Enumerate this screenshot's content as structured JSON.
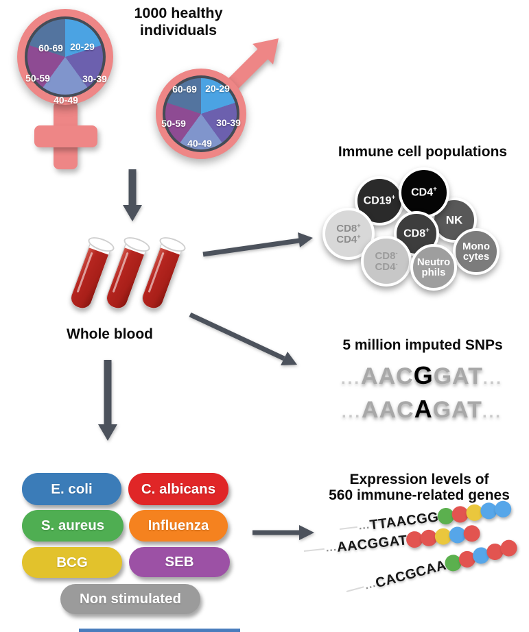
{
  "cohort": {
    "title": "1000 healthy individuals",
    "age_groups": [
      {
        "label": "20-29",
        "color": "#4BA3E3"
      },
      {
        "label": "30-39",
        "color": "#6C60AE"
      },
      {
        "label": "40-49",
        "color": "#8095CC"
      },
      {
        "label": "50-59",
        "color": "#8E4B93"
      },
      {
        "label": "60-69",
        "color": "#53749F"
      }
    ],
    "symbol_color": "#EE8686"
  },
  "whole_blood": {
    "label": "Whole blood"
  },
  "immune_cells": {
    "title": "Immune cell populations",
    "cells": [
      {
        "name": "NK",
        "lines": [
          {
            "base": "NK",
            "sup": ""
          }
        ],
        "bg": "#585858"
      },
      {
        "name": "CD19+",
        "lines": [
          {
            "base": "CD19",
            "sup": "+"
          }
        ],
        "bg": "#2A2A2A"
      },
      {
        "name": "Monocytes",
        "lines": [
          {
            "base": "Mono",
            "sup": ""
          },
          {
            "base": "cytes",
            "sup": ""
          }
        ],
        "bg": "#7C7C7C"
      },
      {
        "name": "CD4+",
        "lines": [
          {
            "base": "CD4",
            "sup": "+"
          }
        ],
        "bg": "#050505"
      },
      {
        "name": "CD8+CD4+",
        "lines": [
          {
            "base": "CD8",
            "sup": "+"
          },
          {
            "base": "CD4",
            "sup": "+"
          }
        ],
        "bg": "#D8D8D8"
      },
      {
        "name": "CD8+",
        "lines": [
          {
            "base": "CD8",
            "sup": "+"
          }
        ],
        "bg": "#3D3D3D"
      },
      {
        "name": "CD8-CD4-",
        "lines": [
          {
            "base": "CD8",
            "sup": "-"
          },
          {
            "base": "CD4",
            "sup": "-"
          }
        ],
        "bg": "#C7C7C7"
      },
      {
        "name": "Neutrophils",
        "lines": [
          {
            "base": "Neutro",
            "sup": ""
          },
          {
            "base": "phils",
            "sup": ""
          }
        ],
        "bg": "#9E9E9E"
      }
    ]
  },
  "snps": {
    "title": "5 million imputed SNPs",
    "sequences": [
      {
        "prefix": "...",
        "before": "AAC",
        "variant": "G",
        "after": "GAT",
        "suffix": "..."
      },
      {
        "prefix": "...",
        "before": "AAC",
        "variant": "A",
        "after": "GAT",
        "suffix": "..."
      }
    ]
  },
  "stimuli": {
    "items": [
      {
        "label": "E. coli",
        "color": "#3B7CB8"
      },
      {
        "label": "C. albicans",
        "color": "#E02627"
      },
      {
        "label": "S. aureus",
        "color": "#4FAE52"
      },
      {
        "label": "Influenza",
        "color": "#F5821F"
      },
      {
        "label": "BCG",
        "color": "#E2C22C"
      },
      {
        "label": "SEB",
        "color": "#9C51A5"
      },
      {
        "label": "Non stimulated",
        "color": "#9B9B9B"
      }
    ]
  },
  "expression": {
    "title_line1": "Expression levels of",
    "title_line2": "560 immune-related genes",
    "dot_colors": {
      "green": "#5BB04E",
      "red": "#E25450",
      "yellow": "#EAC73D",
      "blue": "#56A6E9"
    },
    "genes": [
      {
        "prefix": "...",
        "sequence": "TTAACGG",
        "dots": [
          "green",
          "red",
          "yellow",
          "blue",
          "blue"
        ]
      },
      {
        "prefix": "...",
        "sequence": "AACGGAT",
        "dots": [
          "red",
          "red",
          "yellow",
          "blue",
          "red"
        ]
      },
      {
        "prefix": "...",
        "sequence": "CACGCAA",
        "dots": [
          "green",
          "red",
          "blue",
          "red",
          "red"
        ]
      }
    ]
  },
  "arrows": {
    "color": "#4C525C"
  }
}
